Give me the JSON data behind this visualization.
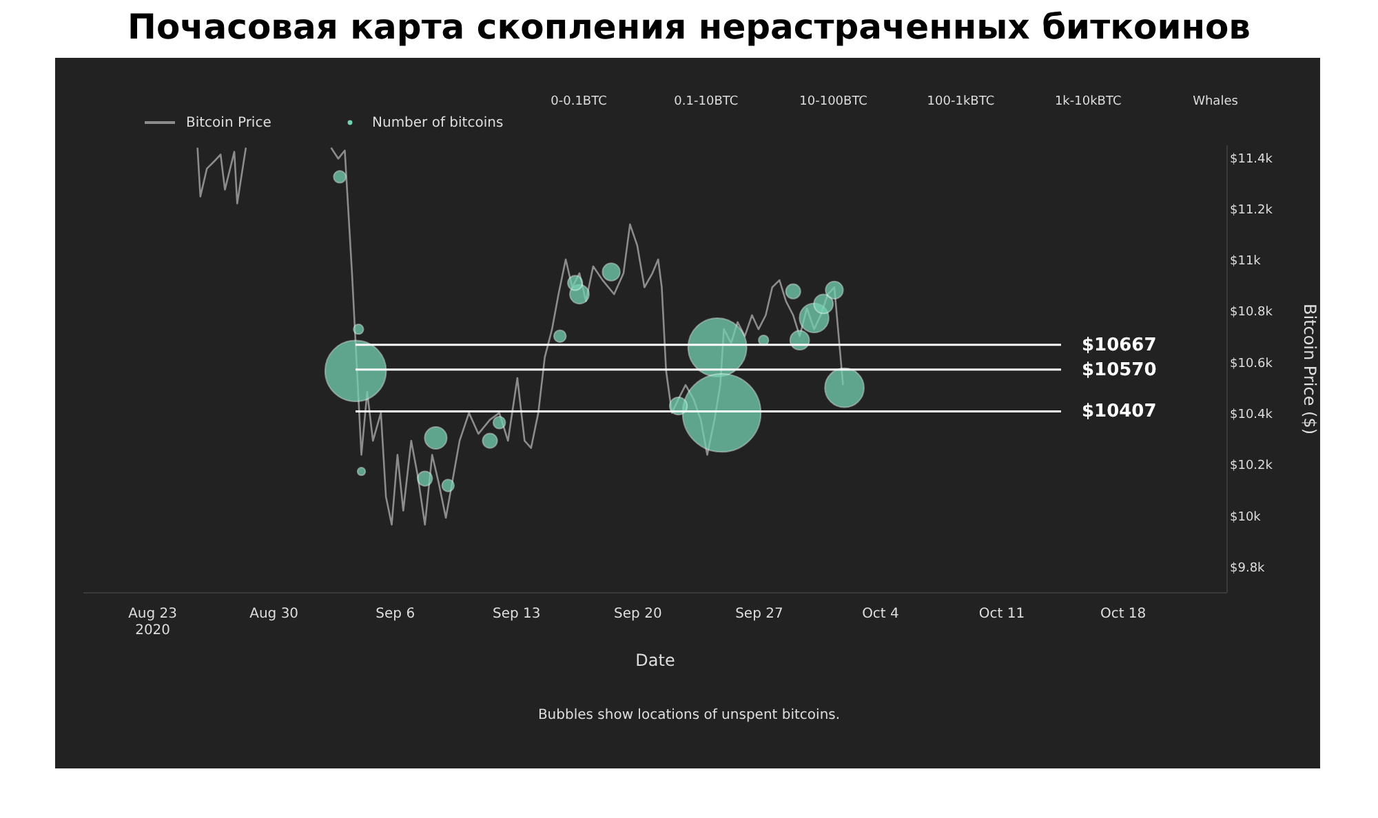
{
  "chart_data": {
    "type": "line",
    "title": "Почасовая карта скопления нерастраченных биткоинов",
    "xlabel": "Date",
    "ylabel": "Bitcoin Price ($)",
    "annotations": [
      "0-0.1BTC",
      "0.1-10BTC",
      "10-100BTC",
      "100-1kBTC",
      "1k-10kBTC",
      "Whales",
      "Bubbles show locations of unspent bitcoins."
    ],
    "legend": "top left",
    "xlim": [
      "2020-08-19",
      "2020-10-24"
    ],
    "xticks": [
      {
        "value": "2020-08-23",
        "label": "Aug 23\n2020"
      },
      {
        "value": "2020-08-30",
        "label": "Aug 30"
      },
      {
        "value": "2020-09-06",
        "label": "Sep 6"
      },
      {
        "value": "2020-09-13",
        "label": "Sep 13"
      },
      {
        "value": "2020-09-20",
        "label": "Sep 20"
      },
      {
        "value": "2020-09-27",
        "label": "Sep 27"
      },
      {
        "value": "2020-10-04",
        "label": "Oct 4"
      },
      {
        "value": "2020-10-11",
        "label": "Oct 11"
      },
      {
        "value": "2020-10-18",
        "label": "Oct 18"
      }
    ],
    "ylim": [
      9700,
      11450
    ],
    "yticks": [
      {
        "value": 9800,
        "label": "$9.8k"
      },
      {
        "value": 10000,
        "label": "$10k"
      },
      {
        "value": 10200,
        "label": "$10.2k"
      },
      {
        "value": 10400,
        "label": "$10.4k"
      },
      {
        "value": 10600,
        "label": "$10.6k"
      },
      {
        "value": 10800,
        "label": "$10.8k"
      },
      {
        "value": 11000,
        "label": "$11k"
      },
      {
        "value": 11200,
        "label": "$11.2k"
      },
      {
        "value": 11400,
        "label": "$11.4k"
      }
    ],
    "grid": false,
    "ref_lines": [
      {
        "axis": "y",
        "value": 10667,
        "label": "$10667",
        "color": "#ffffff"
      },
      {
        "axis": "y",
        "value": 10570,
        "label": "$10570",
        "color": "#ffffff"
      },
      {
        "axis": "y",
        "value": 10407,
        "label": "$10407",
        "color": "#ffffff"
      }
    ],
    "series": [
      {
        "name": "Bitcoin Price",
        "type": "line",
        "color": "#8c8c8c",
        "x": [
          "2020-08-25T15:00",
          "2020-08-25T19:00",
          "2020-08-26T04:00",
          "2020-08-26T14:00",
          "2020-08-26T23:00",
          "2020-08-27T05:00",
          "2020-08-27T18:00",
          "2020-08-27T22:00",
          "2020-08-28T10:00",
          "2020-08-30T12:00",
          "2020-09-02T08:00",
          "2020-09-02T18:00",
          "2020-09-03T03:00",
          "2020-09-03T13:00",
          "2020-09-03T18:00",
          "2020-09-04T02:00",
          "2020-09-04T10:00",
          "2020-09-04T18:00",
          "2020-09-05T05:00",
          "2020-09-05T12:00",
          "2020-09-05T20:00",
          "2020-09-06T04:00",
          "2020-09-06T12:00",
          "2020-09-06T23:00",
          "2020-09-07T08:00",
          "2020-09-07T18:00",
          "2020-09-08T04:00",
          "2020-09-08T13:00",
          "2020-09-08T23:00",
          "2020-09-09T06:00",
          "2020-09-09T18:00",
          "2020-09-10T07:00",
          "2020-09-10T20:00",
          "2020-09-11T12:00",
          "2020-09-12T01:00",
          "2020-09-12T13:00",
          "2020-09-13T02:00",
          "2020-09-13T12:00",
          "2020-09-13T21:00",
          "2020-09-14T07:00",
          "2020-09-14T16:00",
          "2020-09-15T02:00",
          "2020-09-15T11:00",
          "2020-09-15T21:00",
          "2020-09-16T06:00",
          "2020-09-16T16:00",
          "2020-09-17T01:00",
          "2020-09-17T11:00",
          "2020-09-18T00:00",
          "2020-09-18T16:00",
          "2020-09-19T05:00",
          "2020-09-19T14:00",
          "2020-09-20T00:00",
          "2020-09-20T10:00",
          "2020-09-20T21:00",
          "2020-09-21T05:00",
          "2020-09-21T10:00",
          "2020-09-21T16:00",
          "2020-09-22T00:00",
          "2020-09-22T09:00",
          "2020-09-22T19:00",
          "2020-09-23T06:00",
          "2020-09-23T16:00",
          "2020-09-24T01:00",
          "2020-09-24T11:00",
          "2020-09-24T19:00",
          "2020-09-25T00:00",
          "2020-09-25T10:00",
          "2020-09-25T19:00",
          "2020-09-26T05:00",
          "2020-09-26T15:00",
          "2020-09-27T00:00",
          "2020-09-27T10:00",
          "2020-09-27T19:00",
          "2020-09-28T05:00",
          "2020-09-28T14:00",
          "2020-09-29T00:00",
          "2020-09-29T09:00",
          "2020-09-29T19:00",
          "2020-09-30T05:00",
          "2020-09-30T14:00",
          "2020-10-01T00:00",
          "2020-10-01T09:00",
          "2020-10-01T21:00"
        ],
        "values": [
          11438,
          11247,
          11356,
          11384,
          11411,
          11274,
          11422,
          11220,
          11438,
          null,
          11438,
          11395,
          11427,
          10947,
          10674,
          10237,
          10483,
          10292,
          10401,
          10073,
          9964,
          10237,
          10019,
          10292,
          10155,
          9964,
          10237,
          10128,
          9991,
          10101,
          10292,
          10401,
          10319,
          10374,
          10401,
          10292,
          10537,
          10292,
          10264,
          10401,
          10619,
          10728,
          10865,
          11001,
          10892,
          10947,
          10838,
          10974,
          10920,
          10865,
          10947,
          11138,
          11056,
          10892,
          10947,
          11001,
          10892,
          10565,
          10401,
          10455,
          10510,
          10455,
          10374,
          10237,
          10374,
          10510,
          10728,
          10674,
          10756,
          10701,
          10783,
          10728,
          10783,
          10892,
          10920,
          10838,
          10783,
          10701,
          10810,
          10728,
          10783,
          10865,
          10892,
          10510
        ]
      },
      {
        "name": "Number of bitcoins",
        "type": "bubble",
        "color": "#74d1b3",
        "x": [
          "2020-09-03T18:00",
          "2020-09-24T15:00",
          "2020-09-24T21:00",
          "2020-10-01T23:00",
          "2020-09-08T09:00",
          "2020-09-02T20:00",
          "2020-09-16T16:00",
          "2020-09-16T10:00",
          "2020-09-18T12:00",
          "2020-09-11T12:00",
          "2020-09-12T01:00",
          "2020-09-07T18:00",
          "2020-09-09T02:00",
          "2020-09-15T13:00",
          "2020-09-22T09:00",
          "2020-09-30T05:00",
          "2020-09-30T18:00",
          "2020-10-01T09:00",
          "2020-09-29T09:00",
          "2020-09-29T00:00",
          "2020-09-03T22:00",
          "2020-09-04T02:00",
          "2020-09-27T07:00"
        ],
        "values": [
          10565,
          10657,
          10401,
          10499,
          10303,
          11324,
          10865,
          10909,
          10952,
          10292,
          10363,
          10144,
          10117,
          10701,
          10428,
          10772,
          10827,
          10881,
          10685,
          10876,
          10728,
          10172,
          10685
        ],
        "sizes": [
          0.61,
          0.56,
          1,
          0.25,
          0.08,
          0.024,
          0.06,
          0.035,
          0.05,
          0.035,
          0.024,
          0.035,
          0.024,
          0.024,
          0.05,
          0.14,
          0.06,
          0.05,
          0.06,
          0.035,
          0.016,
          0.01,
          0.016
        ]
      }
    ]
  }
}
